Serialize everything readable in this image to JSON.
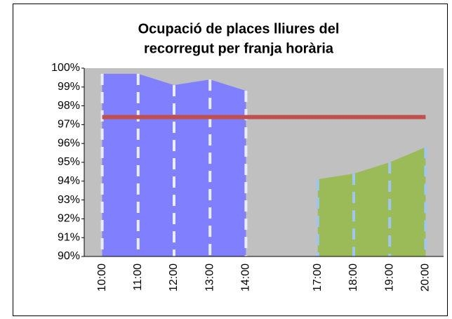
{
  "chart_data": {
    "type": "area",
    "title": [
      "Ocupació de places lliures del",
      "recorregut per franja horària"
    ],
    "categories": [
      "10:00",
      "11:00",
      "12:00",
      "13:00",
      "14:00",
      null,
      "17:00",
      "18:00",
      "19:00",
      "20:00"
    ],
    "series": [
      {
        "color": "#8080ff",
        "values": [
          99.7,
          99.7,
          99.1,
          99.4,
          98.8,
          null,
          null,
          null,
          null,
          null
        ]
      },
      {
        "color": "#9bbb59",
        "values": [
          null,
          null,
          null,
          null,
          null,
          null,
          94.1,
          94.4,
          95.0,
          95.8
        ]
      },
      {
        "type": "line",
        "color": "#c0504d",
        "values": [
          97.4,
          97.4,
          97.4,
          97.4,
          97.4,
          97.4,
          97.4,
          97.4,
          97.4,
          97.4
        ]
      }
    ],
    "ylim": [
      90,
      100
    ],
    "yticks": [
      {
        "value": 90,
        "label": "90%"
      },
      {
        "value": 91,
        "label": "91%"
      },
      {
        "value": 92,
        "label": "92%"
      },
      {
        "value": 93,
        "label": "93%"
      },
      {
        "value": 94,
        "label": "94%"
      },
      {
        "value": 95,
        "label": "95%"
      },
      {
        "value": 96,
        "label": "96%"
      },
      {
        "value": 97,
        "label": "97%"
      },
      {
        "value": 98,
        "label": "98%"
      },
      {
        "value": 99,
        "label": "99%"
      },
      {
        "value": 100,
        "label": "100%"
      }
    ],
    "plot_background": "#c0c0c0"
  }
}
